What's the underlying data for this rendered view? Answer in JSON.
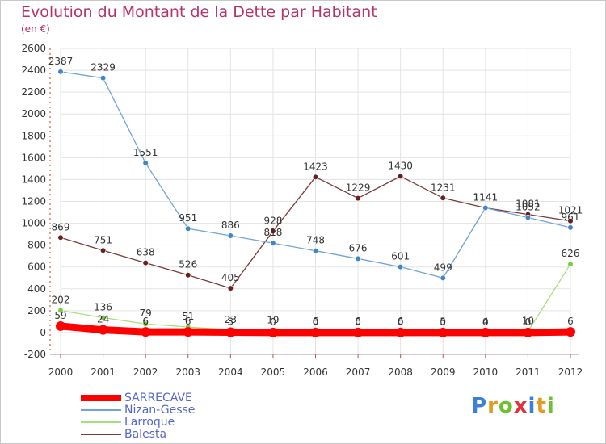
{
  "title": "Evolution du Montant de la Dette par Habitant",
  "subtitle": "(en €)",
  "logo": {
    "text": "Proxiti",
    "letter_colors": [
      "#3d7fd6",
      "#e39a1d",
      "#6fbf2e",
      "#e0323c",
      "#3d7fd6",
      "#e39a1d",
      "#6fbf2e"
    ]
  },
  "chart_data": {
    "type": "line",
    "title": "Evolution du Montant de la Dette par Habitant",
    "subtitle": "(en €)",
    "x": [
      "2000",
      "2001",
      "2002",
      "2003",
      "2004",
      "2005",
      "2006",
      "2007",
      "2008",
      "2009",
      "2010",
      "2011",
      "2012"
    ],
    "y_ticks": [
      "-200",
      "0",
      "200",
      "400",
      "600",
      "800",
      "1000",
      "1200",
      "1400",
      "1600",
      "1800",
      "2000",
      "2200",
      "2400",
      "2600"
    ],
    "ylim": [
      -200,
      2600
    ],
    "grid": true,
    "legend_position": "bottom-left",
    "series": [
      {
        "name": "SARRECAVE",
        "color": "#ff0000",
        "marker_color": "#ff0000",
        "values": [
          59,
          24,
          6,
          6,
          3,
          0,
          0,
          0,
          0,
          0,
          0,
          0,
          6
        ],
        "labels": [
          "59",
          "24",
          "6",
          "6",
          "3",
          "0",
          "0",
          "0",
          "0",
          "0",
          "0",
          "0",
          "6"
        ]
      },
      {
        "name": "Nizan-Gesse",
        "color": "#6fa5d6",
        "marker_color": "#3f86c8",
        "values": [
          2387,
          2329,
          1551,
          951,
          886,
          818,
          748,
          676,
          601,
          499,
          1141,
          1052,
          961
        ],
        "labels": [
          "2387",
          "2329",
          "1551",
          "951",
          "886",
          "818",
          "748",
          "676",
          "601",
          "499",
          "1141",
          "1052",
          "961"
        ]
      },
      {
        "name": "Larroque",
        "color": "#a6e07a",
        "marker_color": "#7acb3f",
        "values": [
          202,
          136,
          79,
          51,
          23,
          19,
          6,
          6,
          6,
          5,
          4,
          10,
          626
        ],
        "labels": [
          "202",
          "136",
          "79",
          "51",
          "23",
          "19",
          "6",
          "6",
          "6",
          "5",
          "4",
          "10",
          "626"
        ]
      },
      {
        "name": "Balesta",
        "color": "#7a3a3a",
        "marker_color": "#6b1e1e",
        "values": [
          869,
          751,
          638,
          526,
          405,
          928,
          1423,
          1229,
          1430,
          1231,
          1141,
          1081,
          1021
        ],
        "labels": [
          "869",
          "751",
          "638",
          "526",
          "405",
          "928",
          "1423",
          "1229",
          "1430",
          "1231",
          "1141",
          "1081",
          "1021"
        ]
      }
    ]
  }
}
